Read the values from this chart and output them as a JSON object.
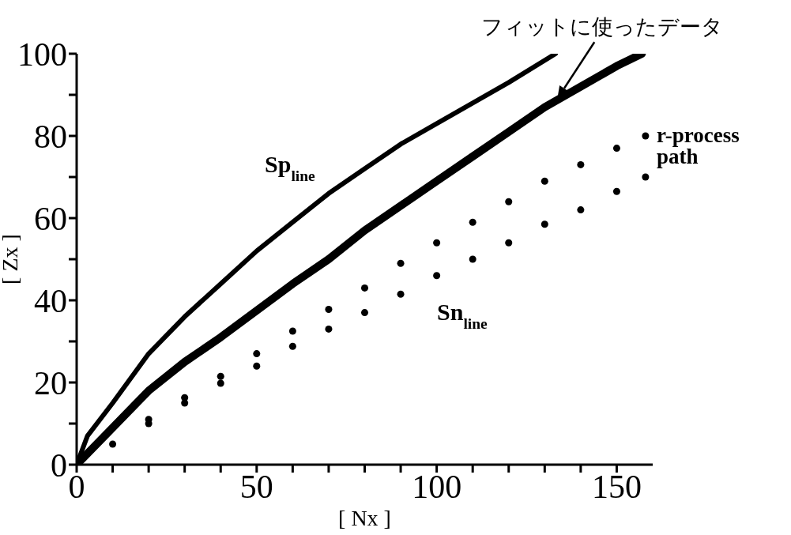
{
  "chart_data": {
    "type": "scatter",
    "xlabel": "[ Nx ]",
    "ylabel": "[ Zx ]",
    "marker": "circle",
    "xlim": [
      0,
      160
    ],
    "ylim": [
      0,
      100
    ],
    "xticks": [
      0,
      {
        "value": 10,
        "label": null
      },
      {
        "value": 20,
        "label": null
      },
      {
        "value": 30,
        "label": null
      },
      {
        "value": 40,
        "label": null
      },
      50,
      {
        "value": 60,
        "label": null
      },
      {
        "value": 70,
        "label": null
      },
      {
        "value": 80,
        "label": null
      },
      {
        "value": 90,
        "label": null
      },
      100,
      {
        "value": 110,
        "label": null
      },
      {
        "value": 120,
        "label": null
      },
      {
        "value": 130,
        "label": null
      },
      {
        "value": 140,
        "label": null
      },
      150
    ],
    "yticks": [
      0,
      {
        "value": 10,
        "label": null
      },
      20,
      {
        "value": 30,
        "label": null
      },
      40,
      {
        "value": 50,
        "label": null
      },
      60,
      {
        "value": 70,
        "label": null
      },
      80,
      {
        "value": 90,
        "label": null
      },
      100
    ],
    "series": [
      {
        "type": "line",
        "marker": "none",
        "color": "#000000",
        "x": [
          0,
          3,
          10,
          20,
          30,
          40,
          50,
          60,
          70,
          80,
          90,
          100,
          110,
          120,
          133
        ],
        "values": [
          0,
          7,
          15,
          27,
          36,
          44,
          52,
          59,
          66,
          72,
          78,
          83,
          88,
          93,
          100
        ]
      },
      {
        "type": "line",
        "marker": "none",
        "color": "#000000",
        "x": [
          0,
          10,
          20,
          30,
          40,
          50,
          60,
          70,
          80,
          90,
          100,
          110,
          120,
          130,
          140,
          150,
          157
        ],
        "values": [
          0,
          9,
          18,
          25,
          31,
          37.5,
          44,
          50,
          57,
          63,
          69,
          75,
          81,
          87,
          92,
          97,
          100
        ]
      },
      {
        "color": "#000000",
        "x": [
          20,
          30,
          40,
          50,
          60,
          70,
          80,
          90,
          100,
          110,
          120,
          130,
          140,
          150,
          158
        ],
        "values": [
          11,
          16.3,
          21.5,
          27,
          32.5,
          37.8,
          43,
          49,
          54,
          59,
          64,
          69,
          73,
          77,
          80
        ]
      },
      {
        "color": "#000000",
        "x": [
          10,
          20,
          30,
          40,
          50,
          60,
          70,
          80,
          90,
          100,
          110,
          120,
          130,
          140,
          150,
          158
        ],
        "values": [
          5,
          10,
          15,
          19.8,
          24,
          28.8,
          33,
          37,
          41.5,
          46,
          50,
          54,
          58.5,
          62,
          66.5,
          70
        ]
      }
    ],
    "annotations": [
      {
        "text": "フィットに使ったデータ",
        "x": 133.5,
        "y": 89
      },
      "Sp$_{line}$",
      {
        "text": "r-process path",
        "x": 158,
        "y": 80
      },
      "Sn$_{line}$"
    ]
  }
}
